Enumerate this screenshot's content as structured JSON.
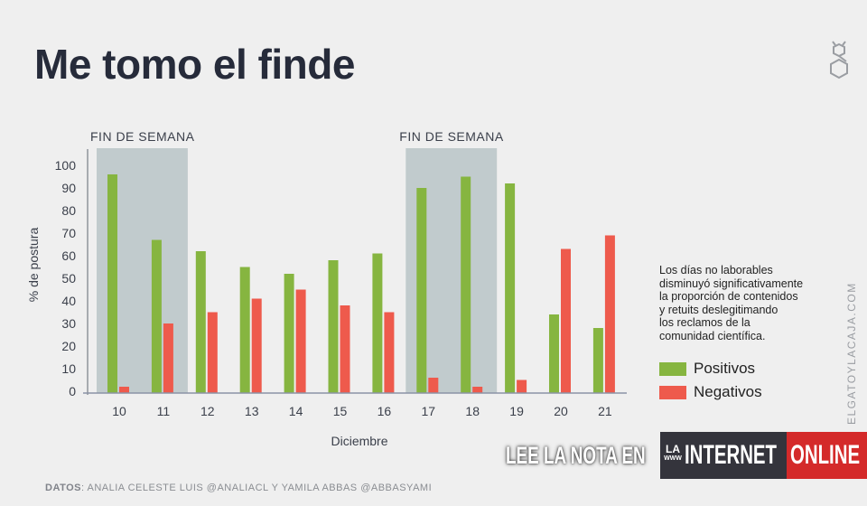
{
  "title": "Me tomo el finde",
  "chart_data": {
    "type": "bar",
    "title": "",
    "xlabel": "Diciembre",
    "ylabel": "% de postura",
    "ylim": [
      0,
      100
    ],
    "yticks": [
      0,
      10,
      20,
      30,
      40,
      50,
      60,
      70,
      80,
      90,
      100
    ],
    "categories": [
      "10",
      "11",
      "12",
      "13",
      "14",
      "15",
      "16",
      "17",
      "18",
      "19",
      "20",
      "21"
    ],
    "series": [
      {
        "name": "Positivos",
        "color": "#86b540",
        "values": [
          96,
          67,
          62,
          55,
          52,
          58,
          61,
          90,
          95,
          92,
          34,
          28
        ]
      },
      {
        "name": "Negativos",
        "color": "#ee5a4c",
        "values": [
          2,
          30,
          35,
          41,
          45,
          38,
          35,
          6,
          2,
          5,
          63,
          69
        ]
      }
    ],
    "highlight_bands": [
      {
        "label": "FIN DE SEMANA",
        "from": "10",
        "to": "11"
      },
      {
        "label": "FIN DE SEMANA",
        "from": "17",
        "to": "18"
      }
    ],
    "band_color": "#c1cbcd",
    "grid": false,
    "legend_position": "right"
  },
  "note": [
    "Los días no laborables",
    "disminuyó significativamente",
    "la proporción de contenidos",
    "y retuits deslegitimando",
    "los reclamos de la",
    "comunidad científica."
  ],
  "credits": {
    "label": "DATOS",
    "text": ": ANALIA CELESTE LUIS @ANALIACL Y YAMILA ABBAS @ABBASYAMI"
  },
  "cta": {
    "text": "LEE LA NOTA EN",
    "la": "LA",
    "www": "WWW",
    "internet": "INTERNET",
    "online": "ONLINE"
  },
  "watermark": "ELGATOYLACAJA.COM",
  "logo": "cat-hexagon-logo"
}
